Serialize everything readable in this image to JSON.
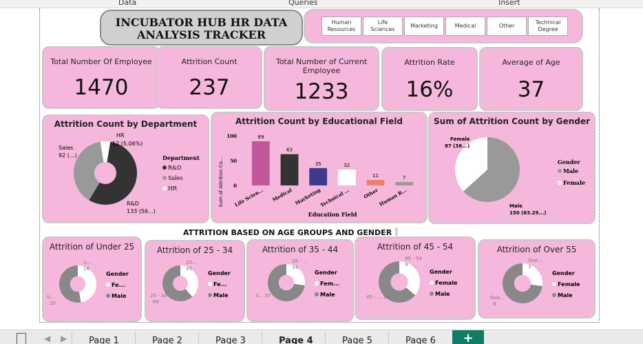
{
  "menu": {
    "data": "Data",
    "queries": "Queries",
    "insert": "Insert"
  },
  "title": {
    "line1": "INCUBATOR HUB HR DATA",
    "line2": "ANALYSIS TRACKER"
  },
  "slicer": {
    "buttons": [
      {
        "line1": "Human",
        "line2": "Resources"
      },
      {
        "line1": "Life",
        "line2": "Sciences"
      },
      {
        "line1": "Marketing",
        "line2": ""
      },
      {
        "line1": "Medical",
        "line2": ""
      },
      {
        "line1": "Other",
        "line2": ""
      },
      {
        "line1": "Technical",
        "line2": "Degree"
      }
    ]
  },
  "kpis": [
    {
      "label": "Total Number Of Employee",
      "label2": "",
      "value": "1470"
    },
    {
      "label": "Attrition Count",
      "label2": "",
      "value": "237"
    },
    {
      "label": "Total Number of Current",
      "label2": "Employee",
      "value": "1233"
    },
    {
      "label": "Attrition Rate",
      "label2": "",
      "value": "16%"
    },
    {
      "label": "Average of Age",
      "label2": "",
      "value": "37"
    }
  ],
  "colors": {
    "card": "#f5b8dc",
    "dark": "#333333",
    "gray": "#999999",
    "white": "#ffffff",
    "tab_green": "#107c68"
  },
  "chart_data": [
    {
      "type": "pie",
      "title": "Attrition Count by Department",
      "legend_title": "Department",
      "categories": [
        "R&D",
        "Sales",
        "HR"
      ],
      "values": [
        133,
        92,
        12
      ],
      "data_labels": [
        "R&D 133 (56...)",
        "Sales 92 (...)",
        "HR 12 (5.06%)"
      ],
      "legend_placement": "right"
    },
    {
      "type": "bar",
      "title": "Attrition Count by Educational Field",
      "xlabel": "Education Field",
      "ylabel": "Sum of Attrition Co...",
      "categories": [
        "Life Scien...",
        "Medical",
        "Marketing",
        "Technical ...",
        "Other",
        "Human R..."
      ],
      "values": [
        89,
        63,
        35,
        32,
        11,
        7
      ],
      "bar_colors": [
        "#c2579b",
        "#333333",
        "#3d3b8e",
        "#ffffff",
        "#e8826a",
        "#9a9a9a"
      ],
      "yticks": [
        "0",
        "50",
        "100"
      ],
      "ylim": [
        0,
        100
      ]
    },
    {
      "type": "pie",
      "title": "Sum of Attrition Count by Gender",
      "legend_title": "Gender",
      "categories": [
        "Male",
        "Female"
      ],
      "values": [
        150,
        87
      ],
      "data_labels": [
        "Male 150 (63.29...)",
        "Female 87 (36...)"
      ],
      "legend_placement": "right"
    }
  ],
  "section_heading": "ATTRITION BASED ON AGE GROUPS AND GENDER",
  "age_groups": [
    {
      "title": "Attrition of Under 25",
      "female": 18,
      "male": 20,
      "female_label": "U...",
      "male_label": "U...",
      "female_value": "18",
      "male_value": "20",
      "legend_title": "Gender",
      "legend_female": "Fe...",
      "legend_male": "Male"
    },
    {
      "title": "Attrition of 25 - 34",
      "female": 43,
      "male": 69,
      "female_label": "25...",
      "male_label": "25 - 34",
      "female_value": "43",
      "male_value": "69",
      "legend_title": "Gender",
      "legend_female": "Fe...",
      "legend_male": "Male"
    },
    {
      "title": "Attrition of 35 - 44",
      "female": 14,
      "male": 37,
      "female_label": "35 - ...",
      "male_label": "3... 37",
      "female_value": "14",
      "male_value": "",
      "legend_title": "Gender",
      "legend_female": "Fem...",
      "legend_male": "Male"
    },
    {
      "title": "Attrition of 45 - 54",
      "female": 9,
      "male": 16,
      "female_label": "45 - 54",
      "male_label": "45 - ... 16",
      "female_value": "9",
      "male_value": "",
      "legend_title": "Gender",
      "legend_female": "Female",
      "legend_male": "Male"
    },
    {
      "title": "Attrition of Over 55",
      "female": 3,
      "male": 8,
      "female_label": "Ove...",
      "male_label": "Ove...",
      "female_value": "3",
      "male_value": "8",
      "legend_title": "Gender",
      "legend_female": "Female",
      "legend_male": "Male"
    }
  ],
  "tabs": [
    "Page 1",
    "Page 2",
    "Page 3",
    "Page 4",
    "Page 5",
    "Page 6"
  ],
  "add_tab": "+"
}
